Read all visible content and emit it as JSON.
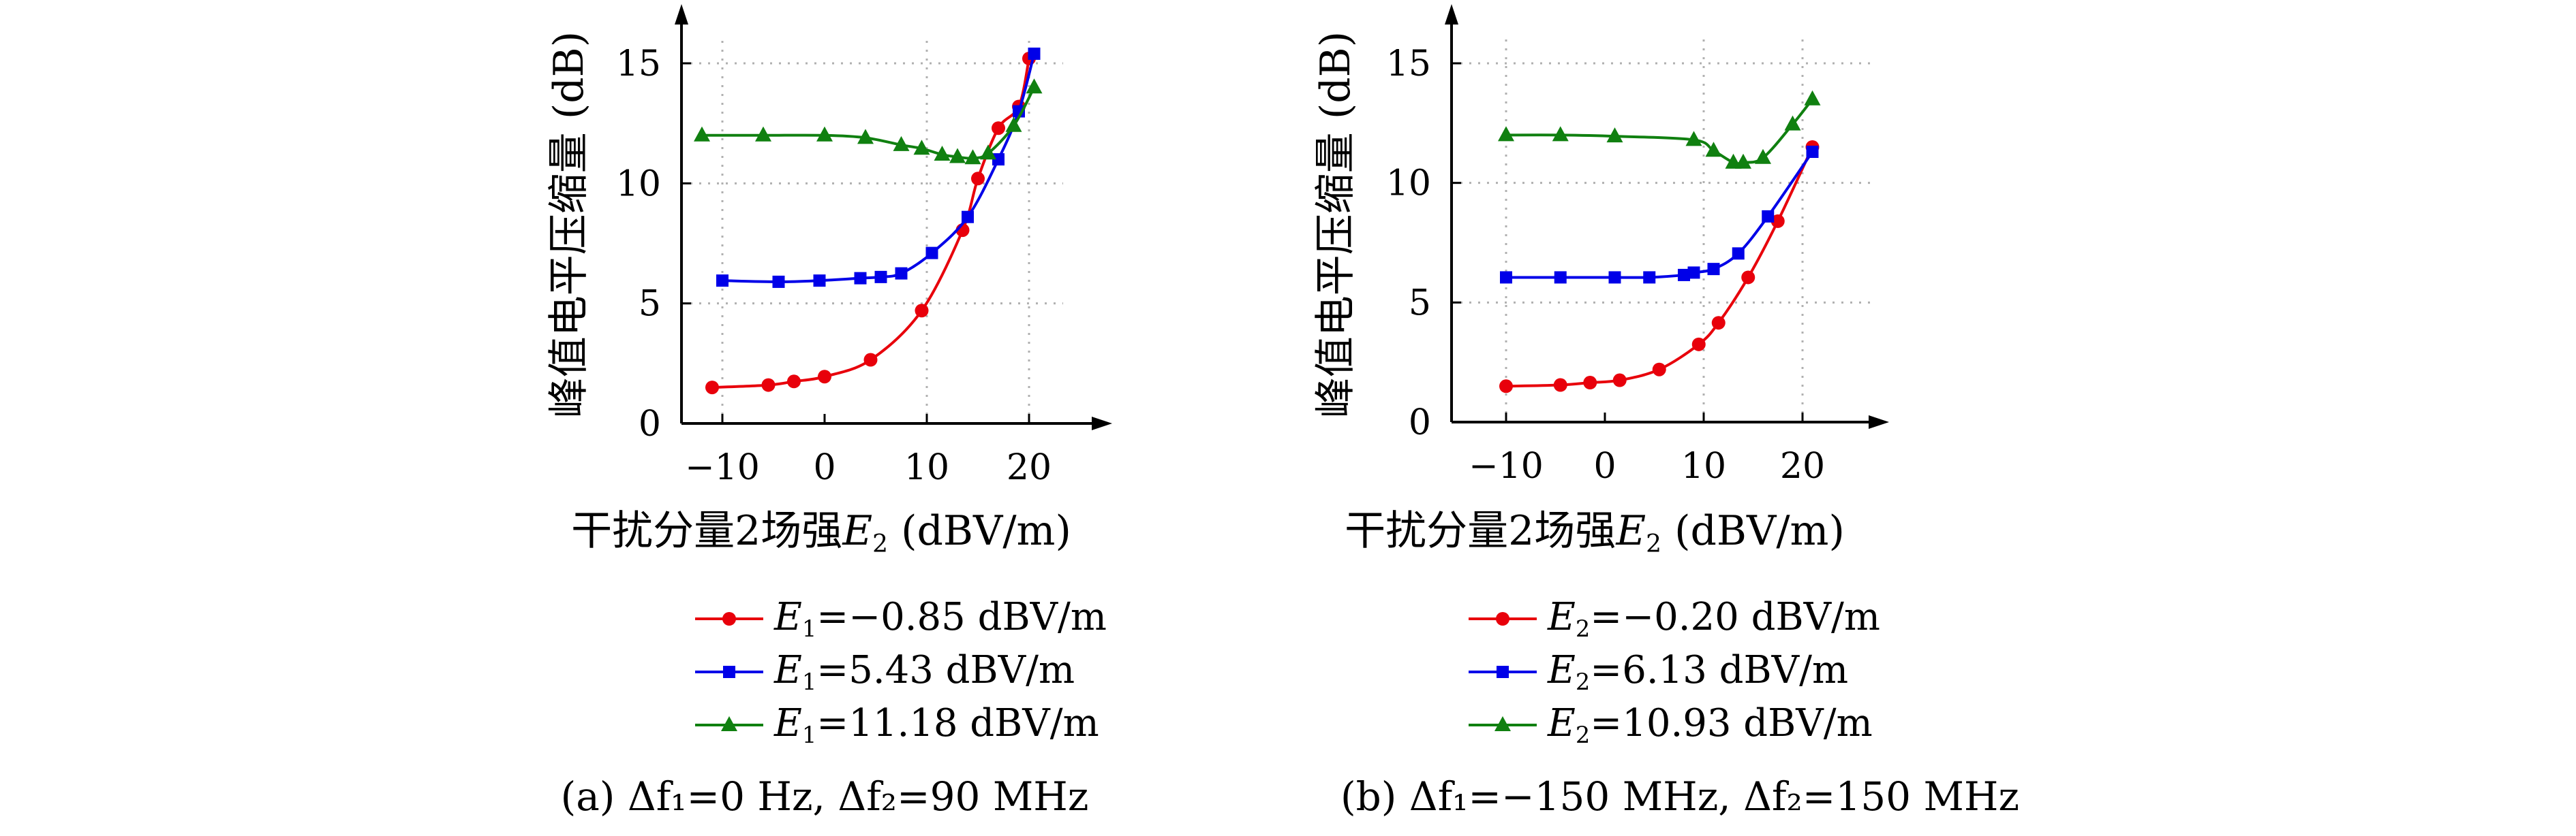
{
  "chart_data": [
    {
      "type": "line",
      "panel": "a",
      "caption": "(a) Δf₁=0 Hz, Δf₂=90 MHz",
      "ylabel": "峰值电平压缩量 (dB)",
      "xlabel_text": "干扰分量2场强",
      "xlabel_var": "E",
      "xlabel_sub": "2",
      "xlabel_unit": " (dBV/m)",
      "xlim": [
        -14,
        27
      ],
      "ylim": [
        0,
        17
      ],
      "xticks": [
        -10,
        0,
        10,
        20
      ],
      "xticklabels": [
        "−10",
        "0",
        "10",
        "20"
      ],
      "yticks": [
        0,
        5,
        10,
        15
      ],
      "yticklabels": [
        "0",
        "5",
        "10",
        "15"
      ],
      "grid": true,
      "grid_style": "dotted",
      "legend_position": "below",
      "series": [
        {
          "legend_var": "E",
          "legend_sub": "1",
          "legend_text": "=−0.85 dBV/m",
          "color": "#e8000b",
          "marker": "circle",
          "x": [
            -11,
            -5.5,
            -3,
            0,
            4.5,
            9.5,
            13.5,
            15,
            17,
            19,
            20
          ],
          "y": [
            1.5,
            1.6,
            1.75,
            1.95,
            2.65,
            4.7,
            8.05,
            10.2,
            12.3,
            13.2,
            15.2
          ]
        },
        {
          "legend_var": "E",
          "legend_sub": "1",
          "legend_text": "=5.43 dBV/m",
          "color": "#0000e8",
          "marker": "square",
          "x": [
            -10,
            -4.5,
            -0.5,
            3.5,
            5.5,
            7.5,
            10.5,
            14,
            17,
            19,
            20.5
          ],
          "y": [
            5.95,
            5.9,
            5.95,
            6.05,
            6.1,
            6.25,
            7.1,
            8.6,
            11.0,
            13.0,
            15.4
          ]
        },
        {
          "legend_var": "E",
          "legend_sub": "1",
          "legend_text": "=11.18 dBV/m",
          "color": "#108010",
          "marker": "triangle",
          "x": [
            -12,
            -6,
            0,
            4,
            7.5,
            9.5,
            11.5,
            13,
            14.5,
            16,
            18.5,
            20.5
          ],
          "y": [
            12.0,
            12.0,
            12.0,
            11.9,
            11.6,
            11.45,
            11.2,
            11.1,
            11.05,
            11.25,
            12.4,
            14.0
          ]
        }
      ]
    },
    {
      "type": "line",
      "panel": "b",
      "caption": "(b) Δf₁=−150 MHz, Δf₂=150 MHz",
      "ylabel": "峰值电平压缩量 (dB)",
      "xlabel_text": "干扰分量2场强",
      "xlabel_var": "E",
      "xlabel_sub": "2",
      "xlabel_unit": " (dBV/m)",
      "xlim": [
        -14,
        27
      ],
      "ylim": [
        0,
        17
      ],
      "xticks": [
        -10,
        0,
        10,
        20
      ],
      "xticklabels": [
        "−10",
        "0",
        "10",
        "20"
      ],
      "yticks": [
        0,
        5,
        10,
        15
      ],
      "yticklabels": [
        "0",
        "5",
        "10",
        "15"
      ],
      "grid": true,
      "grid_style": "dotted",
      "legend_position": "below",
      "series": [
        {
          "legend_var": "E",
          "legend_sub": "2",
          "legend_text": "=−0.20 dBV/m",
          "color": "#e8000b",
          "marker": "circle",
          "x": [
            -10,
            -4.5,
            -1.5,
            1.5,
            5.5,
            9.5,
            11.5,
            14.5,
            17.5,
            21
          ],
          "y": [
            1.5,
            1.55,
            1.65,
            1.75,
            2.2,
            3.25,
            4.15,
            6.05,
            8.4,
            11.5
          ]
        },
        {
          "legend_var": "E",
          "legend_sub": "2",
          "legend_text": "=6.13 dBV/m",
          "color": "#0000e8",
          "marker": "square",
          "x": [
            -10,
            -4.5,
            1,
            4.5,
            8,
            9,
            11,
            13.5,
            16.5,
            21
          ],
          "y": [
            6.05,
            6.05,
            6.05,
            6.05,
            6.15,
            6.25,
            6.4,
            7.05,
            8.6,
            11.3
          ]
        },
        {
          "legend_var": "E",
          "legend_sub": "2",
          "legend_text": "=10.93 dBV/m",
          "color": "#108010",
          "marker": "triangle",
          "x": [
            -10,
            -4.5,
            1,
            9,
            11,
            13,
            14,
            16,
            19,
            21
          ],
          "y": [
            12.0,
            12.0,
            11.95,
            11.8,
            11.35,
            10.85,
            10.85,
            11.05,
            12.45,
            13.5
          ]
        }
      ]
    }
  ]
}
